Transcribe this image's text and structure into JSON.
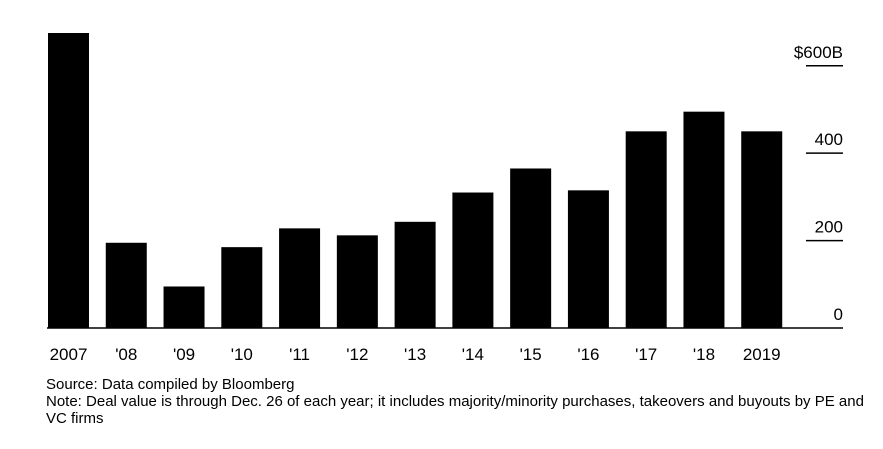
{
  "chart_data": {
    "type": "bar",
    "categories": [
      "2007",
      "'08",
      "'09",
      "'10",
      "'11",
      "'12",
      "'13",
      "'14",
      "'15",
      "'16",
      "'17",
      "'18",
      "2019"
    ],
    "values": [
      675,
      195,
      95,
      185,
      228,
      212,
      243,
      310,
      365,
      315,
      450,
      495,
      450
    ],
    "ylim": [
      0,
      675
    ],
    "yticks": [
      0,
      200,
      400,
      600
    ],
    "ytick_labels": [
      "0",
      "200",
      "400",
      "$600B"
    ],
    "axis_position": "right",
    "grid": false,
    "colors": {
      "bar": "#000000",
      "axis": "#000000",
      "background": "#ffffff"
    }
  },
  "footer": {
    "source": "Source: Data compiled by Bloomberg",
    "note": "Note: Deal value is through Dec. 26 of each year; it includes majority/minority purchases, takeovers and buyouts by PE and VC firms"
  }
}
